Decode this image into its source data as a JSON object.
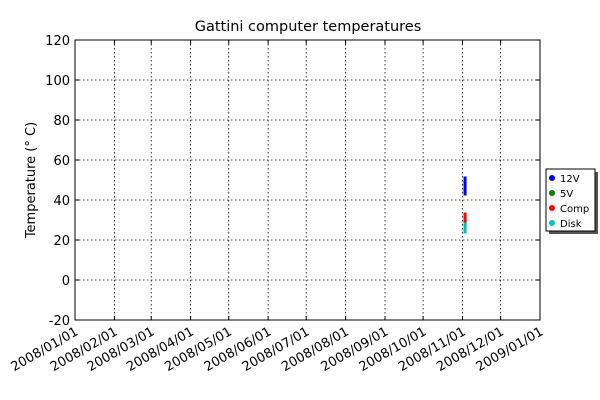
{
  "chart_data": {
    "type": "scatter",
    "title": "Gattini computer temperatures",
    "ylabel": "Temperature (° C)",
    "xlim": [
      "2008/01/01",
      "2009/01/01"
    ],
    "xticks": [
      "2008/01/01",
      "2008/02/01",
      "2008/03/01",
      "2008/04/01",
      "2008/05/01",
      "2008/06/01",
      "2008/07/01",
      "2008/08/01",
      "2008/09/01",
      "2008/10/01",
      "2008/11/01",
      "2008/12/01",
      "2009/01/01"
    ],
    "ylim": [
      -20,
      120
    ],
    "yticks": [
      -20,
      0,
      20,
      40,
      60,
      80,
      100,
      120
    ],
    "grid": true,
    "legend": "right",
    "series": [
      {
        "name": "12V",
        "color": "#0000ff",
        "x": [
          "2008/11/03",
          "2008/11/03",
          "2008/11/03",
          "2008/11/03"
        ],
        "values": [
          44,
          46,
          48,
          50
        ]
      },
      {
        "name": "5V",
        "color": "#008000",
        "x": [
          "2008/11/03",
          "2008/11/03"
        ],
        "values": [
          29,
          30
        ]
      },
      {
        "name": "Comp",
        "color": "#ff0000",
        "x": [
          "2008/11/03",
          "2008/11/03",
          "2008/11/03"
        ],
        "values": [
          28,
          30,
          32
        ]
      },
      {
        "name": "Disk",
        "color": "#00bfbf",
        "x": [
          "2008/11/03",
          "2008/11/03",
          "2008/11/03"
        ],
        "values": [
          25,
          26,
          27
        ]
      }
    ]
  }
}
